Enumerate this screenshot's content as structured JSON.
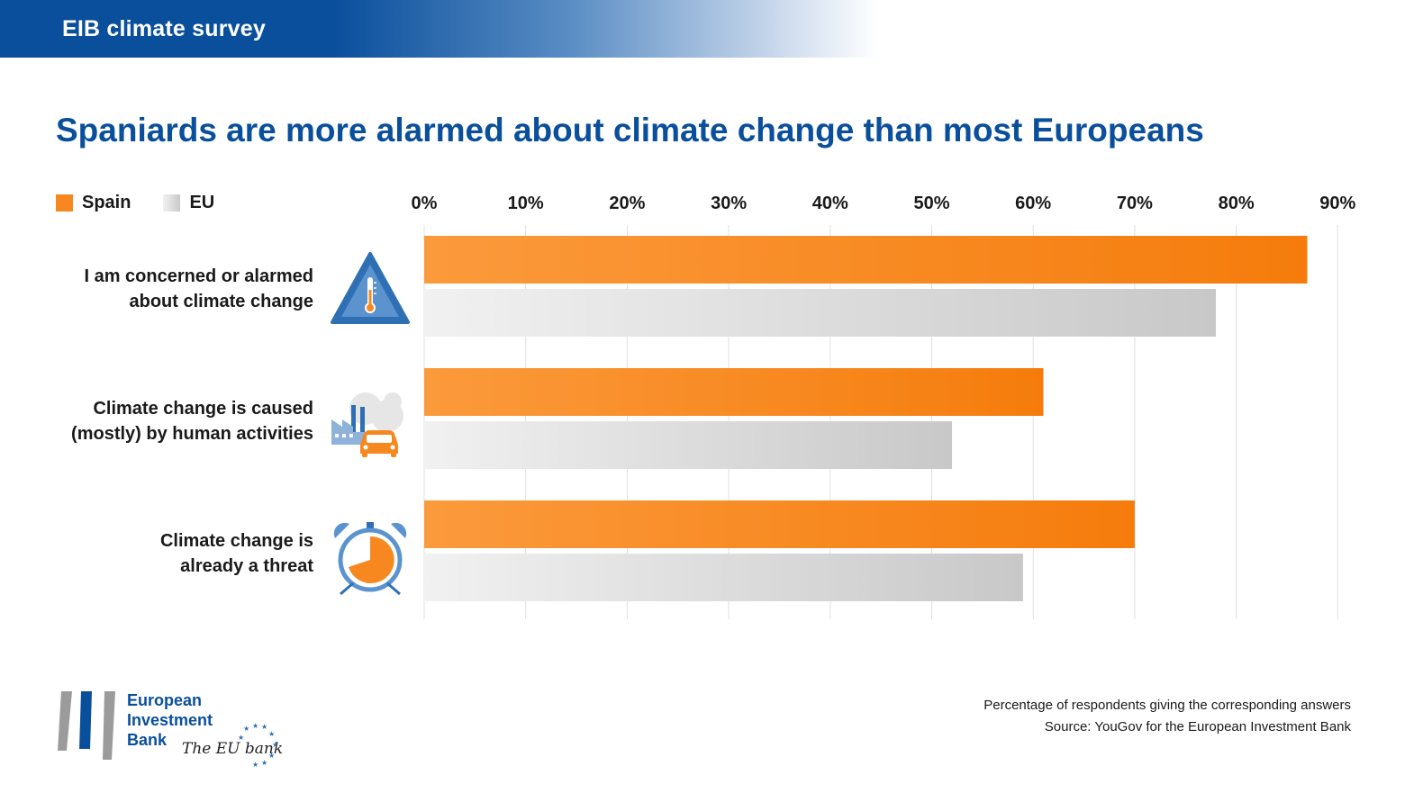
{
  "header": {
    "title": "EIB climate survey"
  },
  "page_title": "Spaniards are more alarmed about climate change than most Europeans",
  "legend": [
    {
      "label": "Spain",
      "color": "#f7881f"
    },
    {
      "label": "EU",
      "color": "#d0d0d0"
    }
  ],
  "chart_data": {
    "type": "bar",
    "orientation": "horizontal",
    "categories": [
      "I am concerned or alarmed about climate change",
      "Climate change is caused (mostly) by human activities",
      "Climate change is already a threat"
    ],
    "series": [
      {
        "name": "Spain",
        "values": [
          87,
          61,
          70
        ],
        "color": "#f7881f"
      },
      {
        "name": "EU",
        "values": [
          78,
          52,
          59
        ],
        "color": "#cfcfcf"
      }
    ],
    "xticks": [
      "0%",
      "10%",
      "20%",
      "30%",
      "40%",
      "50%",
      "60%",
      "70%",
      "80%",
      "90%"
    ],
    "xlim": [
      0,
      90
    ],
    "grid": true,
    "legend_position": "top-left"
  },
  "rows": [
    {
      "label_line1": "I am concerned or alarmed",
      "label_line2": "about climate change",
      "icon": "thermometer-warning-icon"
    },
    {
      "label_line1": "Climate change is caused",
      "label_line2": "(mostly) by human activities",
      "icon": "factory-car-pollution-icon"
    },
    {
      "label_line1": "Climate change is",
      "label_line2": "already a threat",
      "icon": "alarm-clock-icon"
    }
  ],
  "footnotes": {
    "line1": "Percentage of respondents giving the corresponding answers",
    "line2": "Source: YouGov for the European Investment Bank"
  },
  "logo": {
    "line1": "European",
    "line2": "Investment",
    "line3": "Bank",
    "tagline": "The EU bank"
  }
}
